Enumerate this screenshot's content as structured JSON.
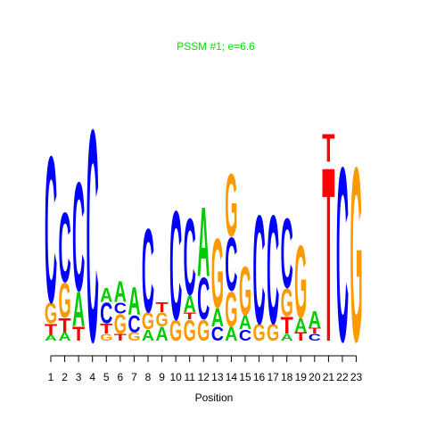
{
  "chart_data": {
    "type": "sequence-logo",
    "title": "PSSM #1; e=6.6",
    "xlabel": "Position",
    "ylabel": "",
    "positions": [
      "1",
      "2",
      "3",
      "4",
      "5",
      "6",
      "7",
      "8",
      "9",
      "10",
      "11",
      "12",
      "13",
      "14",
      "15",
      "16",
      "17",
      "18",
      "19",
      "20",
      "21",
      "22",
      "23"
    ],
    "ylim": [
      0,
      2
    ],
    "colors": {
      "A": "#00cc00",
      "C": "#0000ff",
      "G": "#ff9900",
      "T": "#ff0000"
    },
    "columns": [
      [
        {
          "l": "A",
          "h": 0.04
        },
        {
          "l": "T",
          "h": 0.08
        },
        {
          "l": "G",
          "h": 0.15
        },
        {
          "l": "C",
          "h": 1.05
        }
      ],
      [
        {
          "l": "A",
          "h": 0.06
        },
        {
          "l": "T",
          "h": 0.1
        },
        {
          "l": "G",
          "h": 0.25
        },
        {
          "l": "C",
          "h": 0.5
        }
      ],
      [
        {
          "l": "T",
          "h": 0.1
        },
        {
          "l": "A",
          "h": 0.25
        },
        {
          "l": "C",
          "h": 0.78
        }
      ],
      [
        {
          "l": "C",
          "h": 1.52
        }
      ],
      [
        {
          "l": "G",
          "h": 0.05
        },
        {
          "l": "T",
          "h": 0.07
        },
        {
          "l": "C",
          "h": 0.15
        },
        {
          "l": "A",
          "h": 0.1
        }
      ],
      [
        {
          "l": "T",
          "h": 0.05
        },
        {
          "l": "G",
          "h": 0.14
        },
        {
          "l": "C",
          "h": 0.08
        },
        {
          "l": "A",
          "h": 0.15
        }
      ],
      [
        {
          "l": "G",
          "h": 0.06
        },
        {
          "l": "C",
          "h": 0.12
        },
        {
          "l": "A",
          "h": 0.2
        }
      ],
      [
        {
          "l": "A",
          "h": 0.08
        },
        {
          "l": "G",
          "h": 0.12
        },
        {
          "l": "C",
          "h": 0.6
        }
      ],
      [
        {
          "l": "A",
          "h": 0.1
        },
        {
          "l": "G",
          "h": 0.1
        },
        {
          "l": "T",
          "h": 0.07
        }
      ],
      [
        {
          "l": "G",
          "h": 0.15
        },
        {
          "l": "C",
          "h": 0.78
        }
      ],
      [
        {
          "l": "G",
          "h": 0.15
        },
        {
          "l": "T",
          "h": 0.05
        },
        {
          "l": "A",
          "h": 0.12
        },
        {
          "l": "C",
          "h": 0.55
        }
      ],
      [
        {
          "l": "G",
          "h": 0.15
        },
        {
          "l": "C",
          "h": 0.3
        },
        {
          "l": "A",
          "h": 0.5
        }
      ],
      [
        {
          "l": "C",
          "h": 0.1
        },
        {
          "l": "A",
          "h": 0.13
        },
        {
          "l": "G",
          "h": 0.5
        }
      ],
      [
        {
          "l": "A",
          "h": 0.1
        },
        {
          "l": "G",
          "h": 0.25
        },
        {
          "l": "C",
          "h": 0.38
        },
        {
          "l": "G",
          "h": 0.45
        }
      ],
      [
        {
          "l": "C",
          "h": 0.08
        },
        {
          "l": "A",
          "h": 0.1
        },
        {
          "l": "G",
          "h": 0.35
        }
      ],
      [
        {
          "l": "G",
          "h": 0.12
        },
        {
          "l": "C",
          "h": 0.78
        }
      ],
      [
        {
          "l": "G",
          "h": 0.12
        },
        {
          "l": "C",
          "h": 0.78
        }
      ],
      [
        {
          "l": "A",
          "h": 0.05
        },
        {
          "l": "T",
          "h": 0.12
        },
        {
          "l": "G",
          "h": 0.2
        },
        {
          "l": "C",
          "h": 0.5
        }
      ],
      [
        {
          "l": "T",
          "h": 0.06
        },
        {
          "l": "A",
          "h": 0.1
        },
        {
          "l": "G",
          "h": 0.52
        }
      ],
      [
        {
          "l": "C",
          "h": 0.05
        },
        {
          "l": "T",
          "h": 0.04
        },
        {
          "l": "A",
          "h": 0.12
        }
      ],
      [
        {
          "l": "T",
          "h": 1.25
        },
        {
          "l": "T",
          "h": 0.2
        }
      ],
      [
        {
          "l": "C",
          "h": 1.25
        }
      ],
      [
        {
          "l": "G",
          "h": 1.25
        }
      ]
    ]
  }
}
